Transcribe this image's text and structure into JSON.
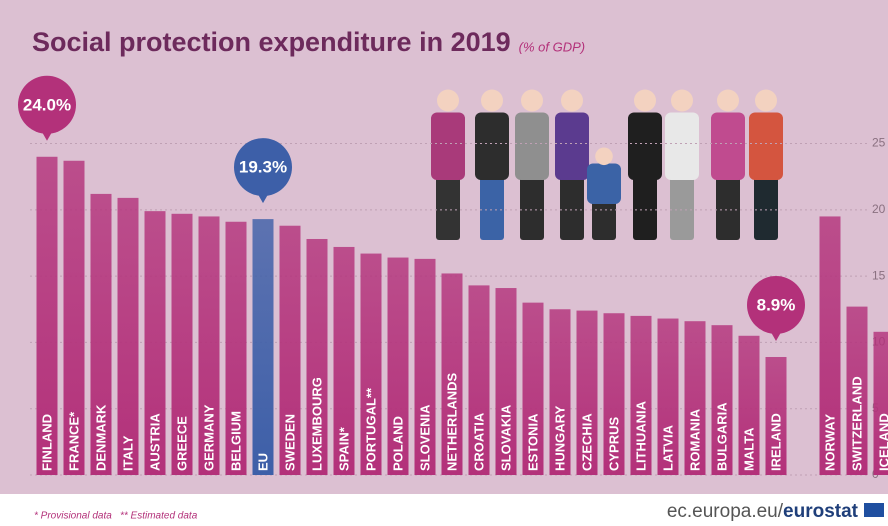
{
  "chart_data": {
    "type": "bar",
    "title": "Social protection expenditure in 2019",
    "subtitle": "(% of GDP)",
    "categories": [
      "FINLAND",
      "FRANCE*",
      "DENMARK",
      "ITALY",
      "AUSTRIA",
      "GREECE",
      "GERMANY",
      "BELGIUM",
      "EU",
      "SWEDEN",
      "LUXEMBOURG",
      "SPAIN*",
      "PORTUGAL**",
      "POLAND",
      "SLOVENIA",
      "NETHERLANDS",
      "CROATIA",
      "SLOVAKIA",
      "ESTONIA",
      "HUNGARY",
      "CZECHIA",
      "CYPRUS",
      "LITHUANIA",
      "LATVIA",
      "ROMANIA",
      "BULGARIA",
      "MALTA",
      "IRELAND",
      null,
      "NORWAY",
      "SWITZERLAND",
      "ICELAND"
    ],
    "values": [
      24.0,
      23.7,
      21.2,
      20.9,
      19.9,
      19.7,
      19.5,
      19.1,
      19.3,
      18.8,
      17.8,
      17.2,
      16.7,
      16.4,
      16.3,
      15.2,
      14.3,
      14.1,
      13.0,
      12.5,
      12.4,
      12.2,
      12.0,
      11.8,
      11.6,
      11.3,
      10.5,
      8.9,
      null,
      19.5,
      12.7,
      10.8
    ],
    "value_labels": [
      "24.0%",
      null,
      null,
      null,
      null,
      null,
      null,
      null,
      "19.3%",
      null,
      null,
      null,
      null,
      null,
      null,
      null,
      null,
      null,
      null,
      null,
      null,
      null,
      null,
      null,
      null,
      null,
      null,
      "8.9%",
      null,
      null,
      null,
      null
    ],
    "colors": [
      "#b3317a",
      "#b3317a",
      "#b3317a",
      "#b3317a",
      "#b3317a",
      "#b3317a",
      "#b3317a",
      "#b3317a",
      "#3d5fa8",
      "#b3317a",
      "#b3317a",
      "#b3317a",
      "#b3317a",
      "#b3317a",
      "#b3317a",
      "#b3317a",
      "#b3317a",
      "#b3317a",
      "#b3317a",
      "#b3317a",
      "#b3317a",
      "#b3317a",
      "#b3317a",
      "#b3317a",
      "#b3317a",
      "#b3317a",
      "#b3317a",
      "#b3317a",
      null,
      "#b3317a",
      "#b3317a",
      "#b3317a"
    ],
    "ylim": [
      0,
      27
    ],
    "yticks": [
      0,
      5,
      10,
      15,
      20,
      25
    ],
    "grid": true,
    "notes": [
      "* Provisional data",
      "** Estimated data"
    ],
    "source": [
      "ec.europa.eu/",
      "eurostat"
    ]
  }
}
